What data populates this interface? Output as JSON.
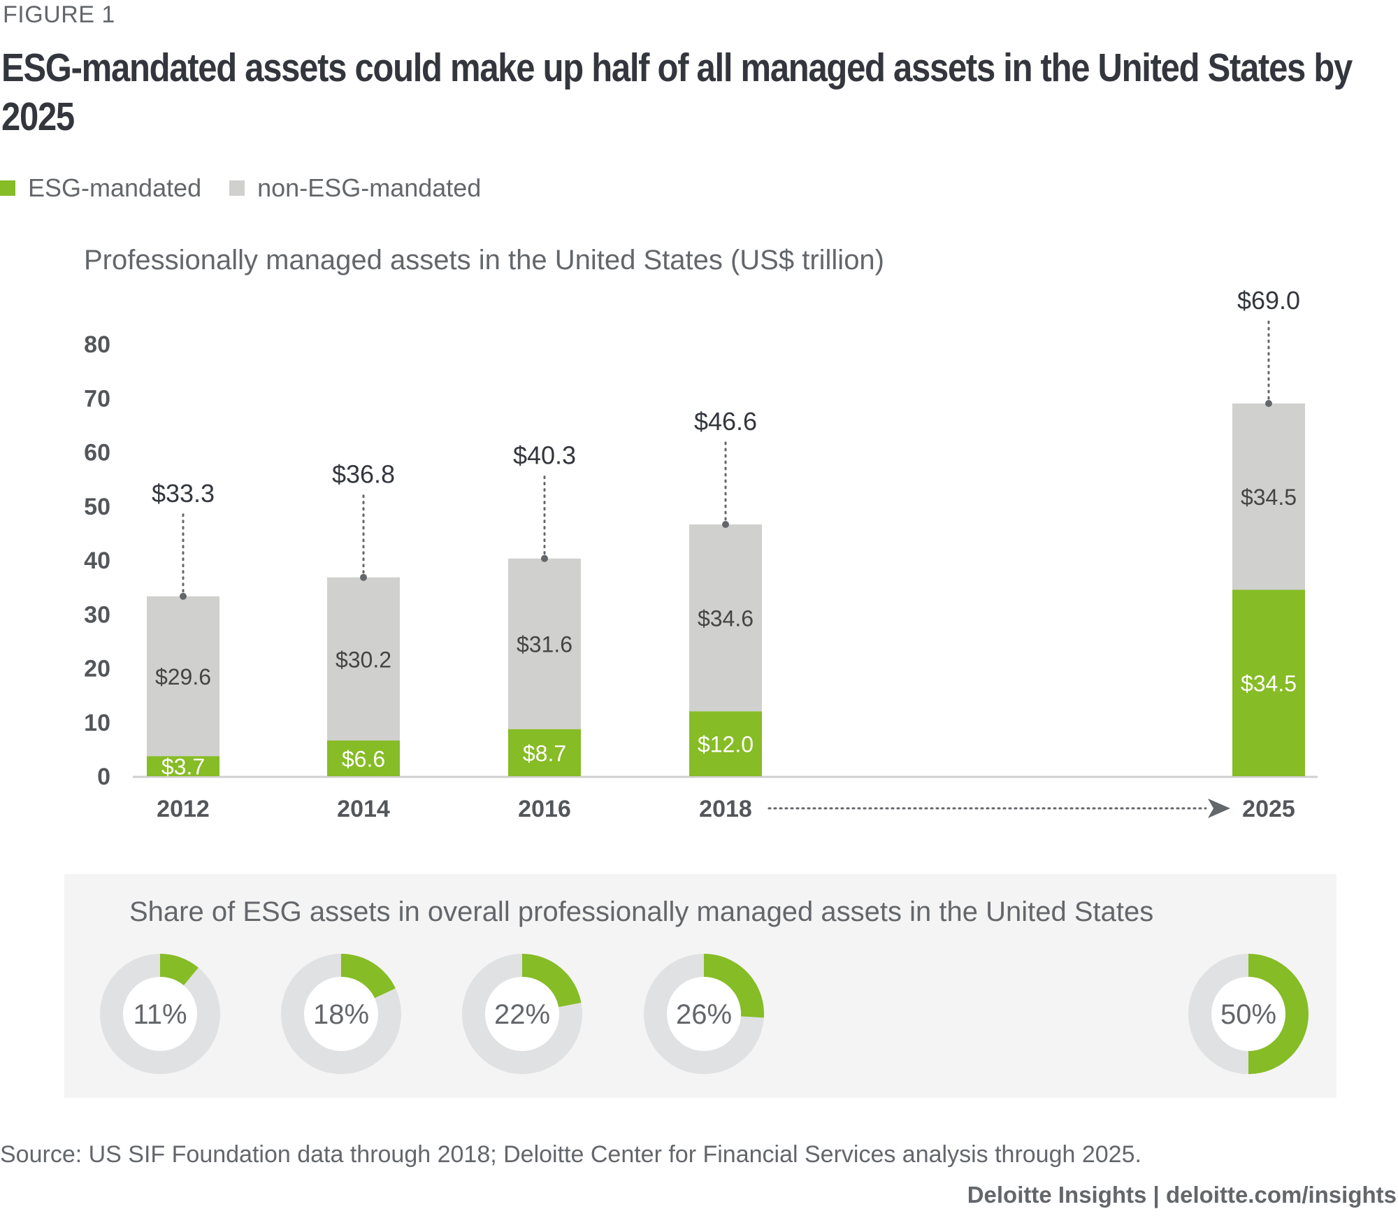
{
  "figure_label": "FIGURE 1",
  "title": "ESG-mandated assets could make up half of all managed assets in the United States by 2025",
  "legend": [
    {
      "label": "ESG-mandated",
      "color": "#86bc25"
    },
    {
      "label": "non-ESG-mandated",
      "color": "#d0d0ce"
    }
  ],
  "colors": {
    "esg": "#86bc25",
    "non_esg": "#d0d0ce",
    "axis_text": "#53565a",
    "donut_track": "#e0e1e2",
    "panel_bg": "#f4f4f4"
  },
  "chart_data": [
    {
      "type": "bar",
      "stacked": true,
      "title": "Professionally managed assets in the United States (US$ trillion)",
      "xlabel": "",
      "ylabel": "",
      "categories": [
        "2012",
        "2014",
        "2016",
        "2018",
        "2025"
      ],
      "series": [
        {
          "name": "ESG-mandated",
          "values": [
            3.7,
            6.6,
            8.7,
            12.0,
            34.5
          ],
          "labels": [
            "$3.7",
            "$6.6",
            "$8.7",
            "$12.0",
            "$34.5"
          ]
        },
        {
          "name": "non-ESG-mandated",
          "values": [
            29.6,
            30.2,
            31.6,
            34.6,
            34.5
          ],
          "labels": [
            "$29.6",
            "$30.2",
            "$31.6",
            "$34.6",
            "$34.5"
          ]
        }
      ],
      "totals": [
        33.3,
        36.8,
        40.3,
        46.6,
        69.0
      ],
      "total_labels": [
        "$33.3",
        "$36.8",
        "$40.3",
        "$46.6",
        "$69.0"
      ],
      "ylim": [
        0,
        80
      ],
      "yticks": [
        0,
        10,
        20,
        30,
        40,
        50,
        60,
        70,
        80
      ],
      "grid": false,
      "legend": "top-left",
      "annotation": "dotted arrow from 2018 to 2025 (projection)"
    },
    {
      "type": "pie",
      "variant": "donut",
      "title": "Share of ESG assets in overall professionally managed assets in the United States",
      "categories": [
        "2012",
        "2014",
        "2016",
        "2018",
        "2025"
      ],
      "values": [
        11,
        18,
        22,
        26,
        50
      ],
      "labels": [
        "11%",
        "18%",
        "22%",
        "26%",
        "50%"
      ]
    }
  ],
  "source": "Source: US SIF Foundation data through 2018; Deloitte Center for Financial Services analysis through 2025.",
  "brand": "Deloitte Insights | deloitte.com/insights"
}
